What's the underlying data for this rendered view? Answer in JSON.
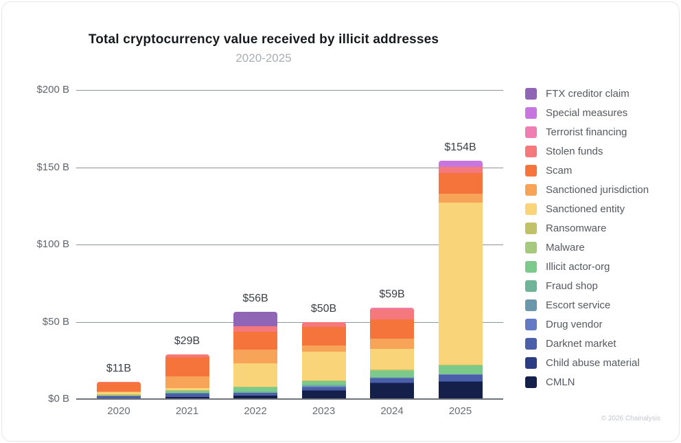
{
  "header": {
    "title": "Total cryptocurrency value received by illicit addresses",
    "subtitle": "2020-2025"
  },
  "footer": {
    "credit": "© 2026 Chainalysis"
  },
  "chart_data": {
    "type": "bar",
    "stacked": true,
    "title": "Total cryptocurrency value received by illicit addresses",
    "subtitle": "2020-2025",
    "xlabel": "",
    "ylabel": "",
    "categories": [
      "2020",
      "2021",
      "2022",
      "2023",
      "2024",
      "2025"
    ],
    "totals": [
      11,
      29,
      56,
      50,
      59,
      154
    ],
    "total_labels": [
      "$11B",
      "$29B",
      "$56B",
      "$50B",
      "$59B",
      "$154B"
    ],
    "ylim": [
      0,
      200
    ],
    "ytick_values": [
      0,
      50,
      100,
      150,
      200
    ],
    "ytick_labels": [
      "$0 B",
      "$50 B",
      "$100 B",
      "$150 B",
      "$200 B"
    ],
    "grid": true,
    "legend_position": "right",
    "series": [
      {
        "name": "FTX creditor claim",
        "color": "#9165b5",
        "values": [
          0,
          0,
          9,
          0,
          0,
          0
        ]
      },
      {
        "name": "Special measures",
        "color": "#c776e0",
        "values": [
          0,
          0,
          0,
          0,
          0,
          4
        ]
      },
      {
        "name": "Terrorist financing",
        "color": "#ef7fb2",
        "values": [
          0,
          0,
          0.1,
          0.3,
          1,
          0.2
        ]
      },
      {
        "name": "Stolen funds",
        "color": "#f4787c",
        "values": [
          0.3,
          2,
          3.5,
          3,
          6.5,
          4
        ]
      },
      {
        "name": "Scam",
        "color": "#f4743c",
        "values": [
          6,
          12.5,
          11.5,
          12,
          12.5,
          13
        ]
      },
      {
        "name": "Sanctioned jurisdiction",
        "color": "#f8a458",
        "values": [
          0.3,
          7.5,
          9,
          4,
          6.5,
          6
        ]
      },
      {
        "name": "Sanctioned entity",
        "color": "#fad479",
        "values": [
          1.6,
          1,
          15,
          18.5,
          13.5,
          105
        ]
      },
      {
        "name": "Ransomware",
        "color": "#c1c168",
        "values": [
          0.5,
          0.6,
          0.4,
          0.5,
          0.5,
          0.3
        ]
      },
      {
        "name": "Malware",
        "color": "#a5ca7e",
        "values": [
          0.1,
          0.1,
          0.2,
          0.3,
          0.3,
          0.2
        ]
      },
      {
        "name": "Illicit actor-org",
        "color": "#7cc98c",
        "values": [
          0.2,
          1.2,
          2.5,
          2,
          4,
          5.5
        ]
      },
      {
        "name": "Fraud shop",
        "color": "#6fb398",
        "values": [
          0.1,
          0.3,
          1,
          1,
          0.4,
          0.2
        ]
      },
      {
        "name": "Escort service",
        "color": "#6b97ad",
        "values": [
          0.05,
          0.1,
          0.1,
          0.5,
          0.2,
          0.1
        ]
      },
      {
        "name": "Drug vendor",
        "color": "#6379c4",
        "values": [
          0.15,
          0.2,
          0.2,
          0.3,
          0.2,
          0.1
        ]
      },
      {
        "name": "Darknet market",
        "color": "#4a5fa8",
        "values": [
          1.5,
          2,
          1.5,
          1.7,
          3,
          4
        ]
      },
      {
        "name": "Child abuse material",
        "color": "#2c3c82",
        "values": [
          0.1,
          0.2,
          0.3,
          0.4,
          0.5,
          0.7
        ]
      },
      {
        "name": "CMLN",
        "color": "#141f4a",
        "values": [
          0.2,
          1.3,
          2,
          5.5,
          10,
          11
        ]
      }
    ]
  }
}
